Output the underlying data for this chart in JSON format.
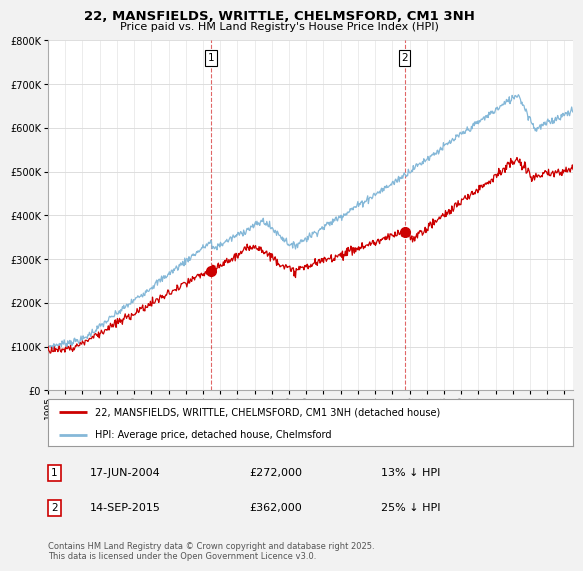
{
  "title": "22, MANSFIELDS, WRITTLE, CHELMSFORD, CM1 3NH",
  "subtitle": "Price paid vs. HM Land Registry's House Price Index (HPI)",
  "ylim": [
    0,
    800000
  ],
  "xlim_start": 1995,
  "xlim_end": 2025.5,
  "red_color": "#cc0000",
  "blue_color": "#85b8d8",
  "vline_color": "#cc0000",
  "annotation1": {
    "label": "1",
    "date": "17-JUN-2004",
    "price": "£272,000",
    "note": "13% ↓ HPI",
    "x": 2004.46
  },
  "annotation2": {
    "label": "2",
    "date": "14-SEP-2015",
    "price": "£362,000",
    "note": "25% ↓ HPI",
    "x": 2015.71
  },
  "legend_red": "22, MANSFIELDS, WRITTLE, CHELMSFORD, CM1 3NH (detached house)",
  "legend_blue": "HPI: Average price, detached house, Chelmsford",
  "footer": "Contains HM Land Registry data © Crown copyright and database right 2025.\nThis data is licensed under the Open Government Licence v3.0.",
  "background_color": "#f2f2f2",
  "plot_background": "#ffffff",
  "grid_color": "#dddddd"
}
